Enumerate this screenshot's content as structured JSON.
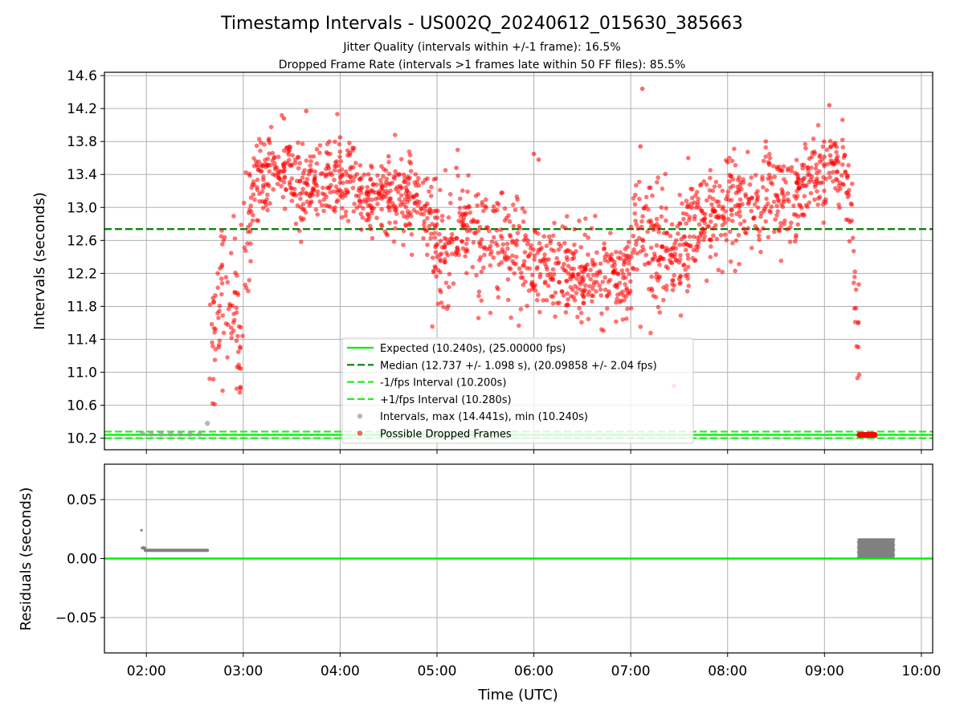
{
  "figure": {
    "title": "Timestamp Intervals - US002Q_20240612_015630_385663",
    "subtitle_line1": "Jitter Quality (intervals within +/-1 frame): 16.5%",
    "subtitle_line2": "Dropped Frame Rate (intervals >1 frames late within 50 FF files): 85.5%"
  },
  "colors": {
    "expected": "#00ee00",
    "median": "#007f00",
    "fps_band": "#22ee22",
    "intervals": "#999999",
    "dropped": "#ff0000",
    "residuals": "#808080",
    "grid": "#b0b0b0"
  },
  "chart_data": [
    {
      "type": "scatter",
      "ylabel": "Intervals (seconds)",
      "xlabel": "",
      "x_unit": "hours UTC",
      "xlim": [
        1.567,
        10.117
      ],
      "ylim": [
        10.06,
        14.64
      ],
      "yticks": [
        10.2,
        10.6,
        11.0,
        11.4,
        11.8,
        12.2,
        12.6,
        13.0,
        13.4,
        13.8,
        14.2,
        14.6
      ],
      "ytick_labels": [
        "10.2",
        "10.6",
        "11.0",
        "11.4",
        "11.8",
        "12.2",
        "12.6",
        "13.0",
        "13.4",
        "13.8",
        "14.2",
        "14.6"
      ],
      "xticks": [
        2,
        3,
        4,
        5,
        6,
        7,
        8,
        9,
        10
      ],
      "grid": true,
      "legend_position": "lower-center",
      "legend": [
        {
          "label": "Expected (10.240s), (25.00000 fps)",
          "kind": "line"
        },
        {
          "label": "Median (12.737 +/- 1.098 s), (20.09858 +/- 2.04 fps)",
          "kind": "dashed-dark"
        },
        {
          "label": "-1/fps Interval (10.200s)",
          "kind": "dashed-light"
        },
        {
          "label": "+1/fps Interval (10.280s)",
          "kind": "dashed-light"
        },
        {
          "label": "Intervals, max (14.441s), min (10.240s)",
          "kind": "dot-gray"
        },
        {
          "label": "Possible Dropped Frames",
          "kind": "dot-red"
        }
      ],
      "reference_lines": {
        "expected": 10.24,
        "median": 12.737,
        "minus_fps": 10.2,
        "plus_fps": 10.28
      },
      "series": [
        {
          "name": "Intervals",
          "x": [
            1.96,
            2.05,
            2.15,
            2.25,
            2.35,
            2.45,
            2.55,
            2.63
          ],
          "y": [
            10.26,
            10.25,
            10.25,
            10.25,
            10.25,
            10.25,
            10.25,
            10.38
          ]
        },
        {
          "name": "Possible Dropped Frames",
          "envelope": {
            "x": [
              2.65,
              2.72,
              2.8,
              2.9,
              2.97,
              3.02,
              3.1,
              3.2,
              3.3,
              3.4,
              3.5,
              3.6,
              3.7,
              3.8,
              3.9,
              4.0,
              4.1,
              4.2,
              4.3,
              4.4,
              4.5,
              4.6,
              4.7,
              4.8,
              4.9,
              5.0,
              5.05,
              5.1,
              5.2,
              5.3,
              5.4,
              5.5,
              5.6,
              5.7,
              5.8,
              5.9,
              6.0,
              6.1,
              6.2,
              6.3,
              6.4,
              6.5,
              6.6,
              6.7,
              6.8,
              6.9,
              7.0,
              7.05,
              7.1,
              7.2,
              7.3,
              7.4,
              7.5,
              7.6,
              7.7,
              7.8,
              7.9,
              8.0,
              8.1,
              8.2,
              8.3,
              8.4,
              8.5,
              8.6,
              8.7,
              8.8,
              8.9,
              9.0,
              9.1,
              9.2,
              9.25,
              9.3,
              9.33,
              9.36
            ],
            "mid": [
              10.9,
              11.6,
              12.2,
              11.9,
              11.2,
              12.2,
              13.2,
              13.3,
              13.4,
              13.5,
              13.4,
              13.3,
              13.3,
              13.35,
              13.4,
              13.35,
              13.4,
              13.2,
              13.1,
              13.2,
              13.1,
              13.15,
              13.2,
              13.1,
              13.0,
              12.6,
              12.45,
              12.5,
              12.8,
              12.9,
              12.7,
              12.55,
              12.6,
              12.5,
              12.45,
              12.4,
              12.3,
              12.25,
              12.3,
              12.2,
              12.2,
              12.15,
              12.15,
              12.1,
              12.2,
              12.15,
              12.2,
              12.8,
              12.9,
              12.6,
              12.4,
              12.5,
              12.4,
              12.7,
              12.9,
              12.85,
              12.9,
              13.0,
              13.1,
              12.9,
              13.0,
              13.1,
              13.15,
              13.1,
              13.2,
              13.3,
              13.4,
              13.45,
              13.5,
              13.5,
              13.2,
              12.5,
              11.8,
              11.4
            ],
            "spread": [
              0.6,
              0.6,
              0.6,
              0.7,
              0.5,
              0.6,
              0.35,
              0.3,
              0.3,
              0.3,
              0.3,
              0.3,
              0.3,
              0.3,
              0.3,
              0.3,
              0.3,
              0.3,
              0.3,
              0.3,
              0.3,
              0.3,
              0.3,
              0.3,
              0.35,
              0.45,
              0.4,
              0.4,
              0.4,
              0.4,
              0.4,
              0.4,
              0.4,
              0.4,
              0.4,
              0.4,
              0.35,
              0.3,
              0.3,
              0.3,
              0.3,
              0.3,
              0.3,
              0.3,
              0.3,
              0.3,
              0.3,
              0.5,
              0.4,
              0.5,
              0.5,
              0.5,
              0.5,
              0.45,
              0.35,
              0.35,
              0.4,
              0.45,
              0.45,
              0.4,
              0.4,
              0.35,
              0.3,
              0.3,
              0.3,
              0.3,
              0.3,
              0.3,
              0.3,
              0.3,
              0.35,
              0.5,
              0.5,
              0.3
            ],
            "count": 1800
          },
          "outliers": {
            "x": [
              7.12,
              9.05,
              3.65,
              3.42,
              4.0,
              6.0,
              7.1,
              2.97,
              8.0,
              5.2,
              6.05,
              9.06,
              4.5
            ],
            "y": [
              14.44,
              14.24,
              14.17,
              14.08,
              13.85,
              13.65,
              13.74,
              10.82,
              13.55,
              13.48,
              13.58,
              13.63,
              13.62
            ]
          },
          "cluster": {
            "x_start": 9.36,
            "x_end": 9.52,
            "y": 10.24
          }
        }
      ]
    },
    {
      "type": "scatter",
      "ylabel": "Residuals (seconds)",
      "xlabel": "Time (UTC)",
      "xlim": [
        1.567,
        10.117
      ],
      "ylim": [
        -0.08,
        0.08
      ],
      "yticks": [
        -0.05,
        0.0,
        0.05
      ],
      "ytick_labels": [
        "−0.05",
        "0.00",
        "0.05"
      ],
      "xticks": [
        2,
        3,
        4,
        5,
        6,
        7,
        8,
        9,
        10
      ],
      "xtick_labels": [
        "02:00",
        "03:00",
        "04:00",
        "05:00",
        "06:00",
        "07:00",
        "08:00",
        "09:00",
        "10:00"
      ],
      "grid": true,
      "zero_line": 0.0,
      "series": [
        {
          "name": "Residuals",
          "early": {
            "x_start": 1.96,
            "x_end": 2.63,
            "y": 0.007,
            "first_x": 1.95,
            "first_y": 0.024
          },
          "late_block": {
            "x_start": 9.35,
            "x_end": 9.72,
            "y_min": 0.001,
            "y_max": 0.016
          }
        }
      ]
    }
  ]
}
